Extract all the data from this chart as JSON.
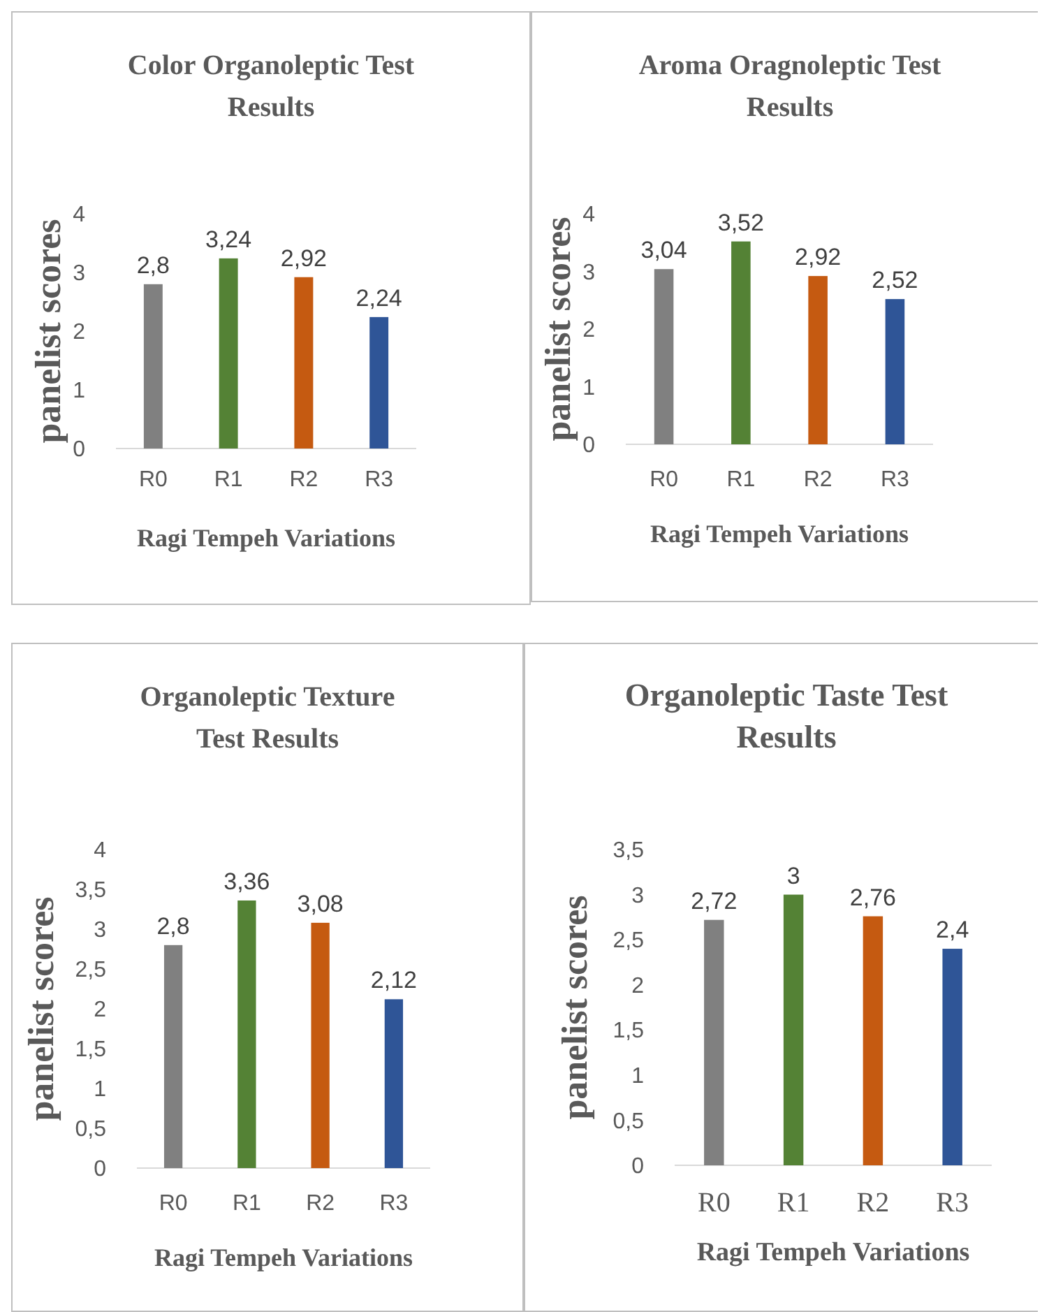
{
  "chart_data": [
    {
      "type": "bar",
      "title": "Color Organoleptic Test Results",
      "xlabel": "Ragi Tempeh Variations",
      "ylabel": "panelist scores",
      "categories": [
        "R0",
        "R1",
        "R2",
        "R3"
      ],
      "values": [
        2.8,
        3.24,
        2.92,
        2.24
      ],
      "value_labels": [
        "2,8",
        "3,24",
        "2,92",
        "2,24"
      ],
      "colors": [
        "#808080",
        "#548235",
        "#c55a11",
        "#2f5597"
      ],
      "ylim": [
        0,
        4
      ],
      "yticks": [
        0,
        1,
        2,
        3,
        4
      ]
    },
    {
      "type": "bar",
      "title": "Aroma Oragnoleptic Test Results",
      "xlabel": "Ragi Tempeh Variations",
      "ylabel": "panelist scores",
      "categories": [
        "R0",
        "R1",
        "R2",
        "R3"
      ],
      "values": [
        3.04,
        3.52,
        2.92,
        2.52
      ],
      "value_labels": [
        "3,04",
        "3,52",
        "2,92",
        "2,52"
      ],
      "colors": [
        "#808080",
        "#548235",
        "#c55a11",
        "#2f5597"
      ],
      "ylim": [
        0,
        4
      ],
      "yticks": [
        0,
        1,
        2,
        3,
        4
      ]
    },
    {
      "type": "bar",
      "title": "Organoleptic Texture Test Results",
      "xlabel": "Ragi Tempeh Variations",
      "ylabel": "panelist scores",
      "categories": [
        "R0",
        "R1",
        "R2",
        "R3"
      ],
      "values": [
        2.8,
        3.36,
        3.08,
        2.12
      ],
      "value_labels": [
        "2,8",
        "3,36",
        "3,08",
        "2,12"
      ],
      "colors": [
        "#808080",
        "#548235",
        "#c55a11",
        "#2f5597"
      ],
      "ylim": [
        0,
        4
      ],
      "yticks": [
        0,
        {
          "value": 0.5,
          "label": "0,5"
        },
        1,
        {
          "value": 1.5,
          "label": "1,5"
        },
        2,
        {
          "value": 2.5,
          "label": "2,5"
        },
        3,
        {
          "value": 3.5,
          "label": "3,5"
        },
        4
      ]
    },
    {
      "type": "bar",
      "title": "Organoleptic Taste Test Results",
      "xlabel": "Ragi Tempeh Variations",
      "ylabel": "panelist scores",
      "categories": [
        "R0",
        "R1",
        "R2",
        "R3"
      ],
      "values": [
        2.72,
        3,
        2.76,
        2.4
      ],
      "value_labels": [
        "2,72",
        "3",
        "2,76",
        "2,4"
      ],
      "colors": [
        "#808080",
        "#548235",
        "#c55a11",
        "#2f5597"
      ],
      "ylim": [
        0,
        3.5
      ],
      "yticks": [
        0,
        {
          "value": 0.5,
          "label": "0,5"
        },
        1,
        {
          "value": 1.5,
          "label": "1,5"
        },
        2,
        {
          "value": 2.5,
          "label": "2,5"
        },
        3,
        {
          "value": 3.5,
          "label": "3,5"
        }
      ]
    }
  ]
}
